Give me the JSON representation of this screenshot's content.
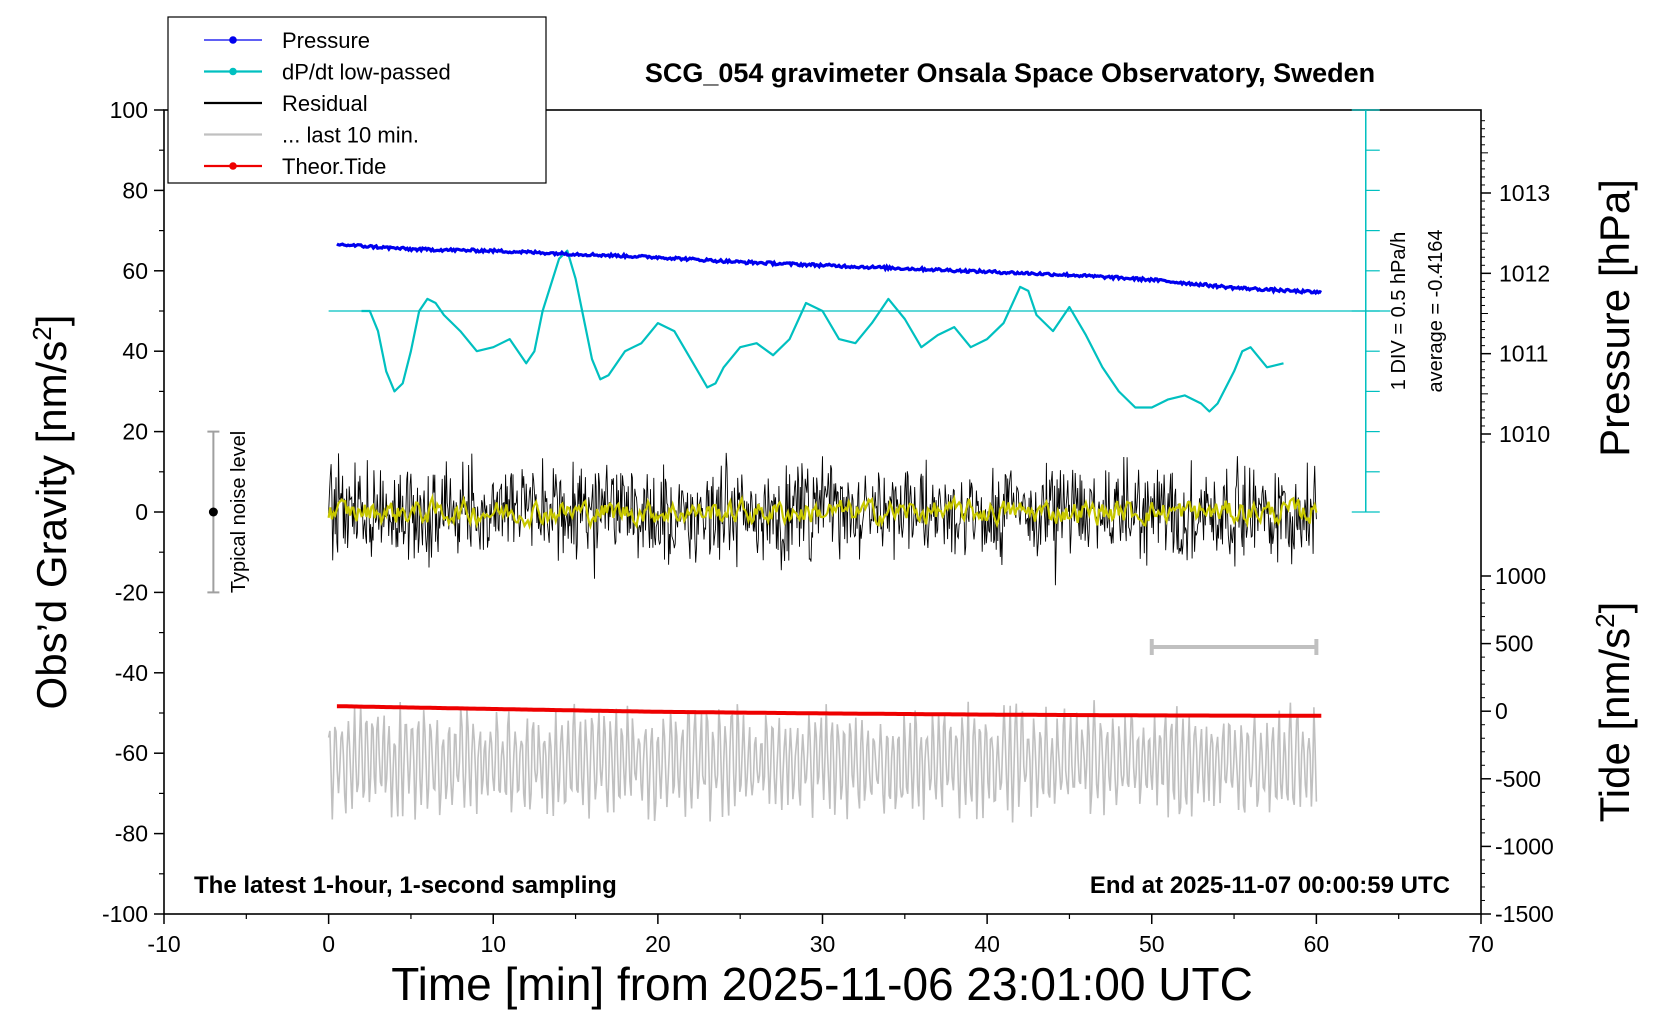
{
  "chart_data": {
    "type": "line",
    "title": "SCG_054 gravimeter Onsala Space Observatory, Sweden",
    "xlabel": "Time [min] from 2025-11-06 23:01:00 UTC",
    "ylabel_left_main": "Obs’d Gravity [nm/s",
    "ylabel_left_sup": "2",
    "ylabel_left_close": "]",
    "ylabel_right_pressure": "Pressure [hPa]",
    "ylabel_right_tide_main": "Tide [nm/s",
    "ylabel_right_tide_sup": "2",
    "ylabel_right_tide_close": "]",
    "xlim": [
      -10,
      70
    ],
    "ylim_left": [
      -100,
      100
    ],
    "ylim_pressure_visible": [
      1010,
      1013
    ],
    "ylim_tide": [
      -1500,
      1000
    ],
    "x_ticks": [
      "-10",
      "0",
      "10",
      "20",
      "30",
      "40",
      "50",
      "60",
      "70"
    ],
    "y_ticks_left": [
      "100",
      "80",
      "60",
      "40",
      "20",
      "0",
      "-20",
      "-40",
      "-60",
      "-80",
      "-100"
    ],
    "y_ticks_pressure": [
      "1013",
      "1012",
      "1011",
      "1010"
    ],
    "y_ticks_tide": [
      "1000",
      "500",
      "0",
      "-500",
      "-1000",
      "-1500"
    ],
    "legend": [
      {
        "name": "Pressure",
        "color": "#0000ee",
        "marker": true
      },
      {
        "name": "dP/dt low-passed",
        "color": "#00c0c0",
        "marker": true
      },
      {
        "name": "Residual",
        "color": "#000000",
        "marker": false
      },
      {
        "name": "... last 10 min.",
        "color": "#c0c0c0",
        "marker": false
      },
      {
        "name": "Theor.Tide",
        "color": "#ee0000",
        "marker": true
      }
    ],
    "legend_position": "top-left",
    "annotations": {
      "bottom_left": "The latest 1-hour, 1-second sampling",
      "bottom_right": "End at 2025-11-07 00:00:59 UTC",
      "noise": "Typical noise level",
      "dpdt_scale": "1 DIV = 0.5 hPa/h",
      "dpdt_average": "average = -0.4164"
    },
    "noise_bar": {
      "x": -7,
      "center": 0,
      "half_range": 20
    },
    "ten_min_bar": {
      "x_start": 50,
      "x_end": 60
    },
    "series": [
      {
        "name": "Pressure",
        "axis": "pressure_hPa",
        "color": "#0000ee",
        "x": [
          0.5,
          5,
          10,
          15,
          20,
          25,
          30,
          35,
          40,
          45,
          50,
          55,
          60.3
        ],
        "values": [
          1012.36,
          1012.3,
          1012.28,
          1012.24,
          1012.2,
          1012.14,
          1012.1,
          1012.06,
          1012.02,
          1011.98,
          1011.92,
          1011.82,
          1011.76
        ]
      },
      {
        "name": "dP/dt low-passed",
        "axis": "left_plot_units",
        "color": "#00c0c0",
        "x": [
          2,
          2.5,
          3,
          3.5,
          4,
          4.5,
          5,
          5.5,
          6,
          6.5,
          7,
          8,
          9,
          10,
          11,
          12,
          12.5,
          13,
          14,
          14.5,
          15,
          15.5,
          16,
          16.5,
          17,
          18,
          19,
          20,
          21,
          22,
          23,
          23.5,
          24,
          25,
          26,
          27,
          28,
          29,
          30,
          31,
          32,
          33,
          34,
          35,
          36,
          37,
          38,
          39,
          40,
          41,
          42,
          42.5,
          43,
          44,
          45,
          46,
          47,
          48,
          49,
          50,
          51,
          52,
          53,
          53.5,
          54,
          55,
          55.5,
          56,
          57,
          58
        ],
        "values": [
          50,
          50,
          45,
          35,
          30,
          32,
          40,
          50,
          53,
          52,
          49,
          45,
          40,
          41,
          43,
          37,
          40,
          50,
          63,
          65,
          58,
          48,
          38,
          33,
          34,
          40,
          42,
          47,
          45,
          38,
          31,
          32,
          36,
          41,
          42,
          39,
          43,
          52,
          50,
          43,
          42,
          47,
          53,
          48,
          41,
          44,
          46,
          41,
          43,
          47,
          56,
          55,
          49,
          45,
          51,
          44,
          36,
          30,
          26,
          26,
          28,
          29,
          27,
          25,
          27,
          35,
          40,
          41,
          36,
          37
        ]
      },
      {
        "name": "Residual",
        "axis": "left_nm_s2",
        "color": "#000000",
        "x_range": [
          0,
          60
        ],
        "center": 0,
        "amplitude": 15
      },
      {
        "name": "Residual smoothed",
        "axis": "left_nm_s2",
        "color": "#c8c800",
        "x_range": [
          0,
          60
        ],
        "center": 0,
        "amplitude": 3
      },
      {
        "name": "Theor.Tide",
        "axis": "left_plot_units",
        "color": "#ee0000",
        "x": [
          0.5,
          10,
          20,
          30,
          40,
          50,
          60.3
        ],
        "values": [
          -48.3,
          -49,
          -49.7,
          -50.1,
          -50.4,
          -50.6,
          -50.7
        ]
      },
      {
        "name": "... last 10 min.",
        "axis": "left_plot_units",
        "color": "#c0c0c0",
        "x_range": [
          0,
          60
        ],
        "center": -62,
        "amplitude": 14
      }
    ]
  }
}
